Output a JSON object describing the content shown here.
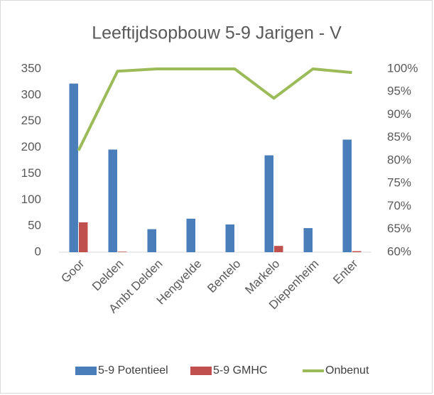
{
  "chart_data": {
    "type": "bar-line",
    "title": "Leeftijdsopbouw 5-9 Jarigen - V",
    "categories": [
      "Goor",
      "Delden",
      "Ambt Delden",
      "Hengvelde",
      "Bentelo",
      "Markelo",
      "Diepenheim",
      "Enter"
    ],
    "series": [
      {
        "name": "5-9 Potentieel",
        "color": "#4a7ebb",
        "type": "bar",
        "values": [
          322,
          196,
          44,
          64,
          53,
          185,
          46,
          215
        ]
      },
      {
        "name": "5-9 GMHC",
        "color": "#c0504d",
        "type": "bar",
        "values": [
          57,
          1,
          0,
          0,
          0,
          12,
          0,
          2
        ]
      },
      {
        "name": "Onbenut",
        "color": "#9bbb59",
        "type": "line",
        "axis": "y2",
        "values": [
          82.2,
          99.5,
          100,
          100,
          100,
          93.6,
          100,
          99.2
        ]
      }
    ],
    "ylim": [
      0,
      350
    ],
    "yticks": [
      0,
      50,
      100,
      150,
      200,
      250,
      300,
      350
    ],
    "y2lim": [
      60,
      100
    ],
    "y2ticks": [
      {
        "value": 60,
        "label": "60%"
      },
      {
        "value": 65,
        "label": "65%"
      },
      {
        "value": 70,
        "label": "70%"
      },
      {
        "value": 75,
        "label": "75%"
      },
      {
        "value": 80,
        "label": "80%"
      },
      {
        "value": 85,
        "label": "85%"
      },
      {
        "value": 90,
        "label": "90%"
      },
      {
        "value": 95,
        "label": "95%"
      },
      {
        "value": 100,
        "label": "100%"
      }
    ],
    "grid": false,
    "legend": "bottom"
  }
}
